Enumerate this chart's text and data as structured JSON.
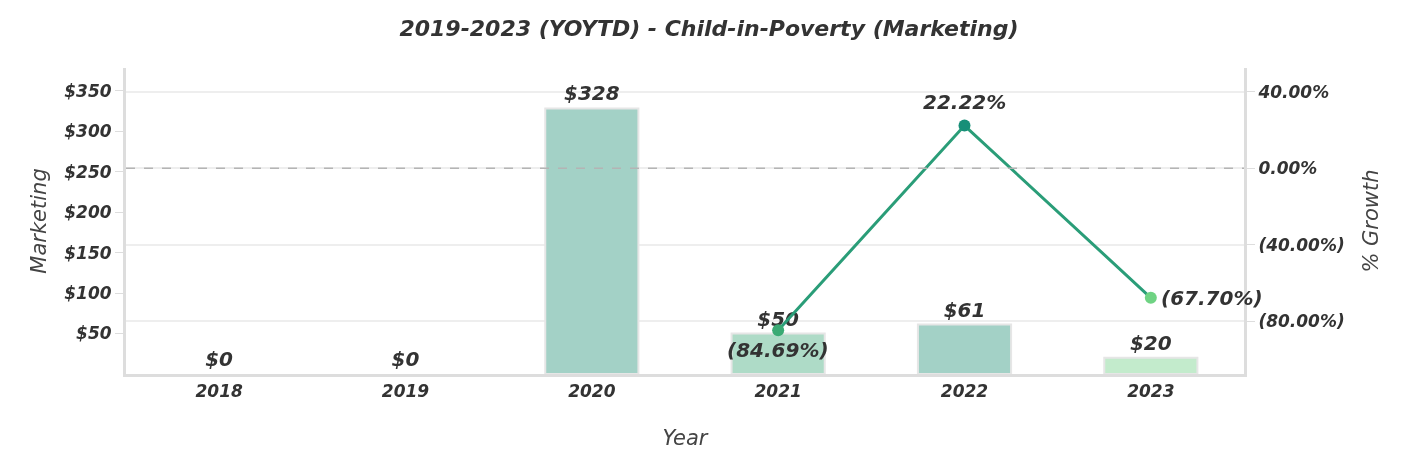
{
  "chart_data": {
    "type": "bar",
    "title": "2019-2023 (YOYTD) - Child-in-Poverty (Marketing)",
    "xlabel": "Year",
    "ylabel": "Marketing",
    "y2label": "% Growth",
    "categories": [
      "2018",
      "2019",
      "2020",
      "2021",
      "2022",
      "2023"
    ],
    "series": [
      {
        "values": [
          0,
          0,
          328,
          50,
          61,
          20
        ],
        "colors": [
          "#a3d1c6",
          "#a3d1c6",
          "#a3d1c6",
          "#aedbc7",
          "#a3d1c6",
          "#c3ebcc"
        ],
        "value_labels": [
          "$0",
          "$0",
          "$328",
          "$50",
          "$61",
          "$20"
        ]
      },
      {
        "type": "line",
        "axis": "y2",
        "values": [
          null,
          null,
          null,
          -84.69,
          22.22,
          -67.7
        ],
        "color": "#2a9d78",
        "colors": [
          null,
          null,
          null,
          "#3aaa74",
          "#178f78",
          "#6fd383"
        ],
        "value_labels": [
          null,
          null,
          null,
          "(84.69%)",
          "22.22%",
          "(67.70%)"
        ],
        "marker": "circle",
        "line_style": "solid"
      }
    ],
    "ylim": [
      0,
      378
    ],
    "yticks": [
      {
        "value": 50,
        "label": "$50"
      },
      {
        "value": 100,
        "label": "$100"
      },
      {
        "value": 150,
        "label": "$150"
      },
      {
        "value": 200,
        "label": "$200"
      },
      {
        "value": 250,
        "label": "$250"
      },
      {
        "value": 300,
        "label": "$300"
      },
      {
        "value": 350,
        "label": "$350"
      }
    ],
    "y2lim": [
      -107.5,
      52.3
    ],
    "y2ticks": [
      {
        "value": 40,
        "label": "40.00%"
      },
      {
        "value": 0,
        "label": "0.00%"
      },
      {
        "value": -40,
        "label": "(40.00%)"
      },
      {
        "value": -80,
        "label": "(80.00%)"
      }
    ],
    "ref_lines": [
      {
        "axis": "y2",
        "value": 0,
        "color": "#b4b4b4",
        "line_style": "dashed"
      }
    ],
    "grid": true
  }
}
